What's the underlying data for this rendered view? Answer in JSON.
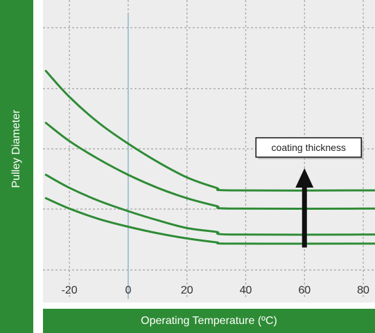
{
  "colors": {
    "accent": "#2e8b35",
    "curve": "#2e8b35",
    "panel": "#ededed",
    "grid": "#a3a3a3",
    "zero_line": "#8fb7cf",
    "arrow": "#111111"
  },
  "chart_data": {
    "type": "line",
    "title": "",
    "xlabel": "Operating Temperature (ºC)",
    "ylabel": "Pulley Diameter",
    "x_ticks": [
      "-20",
      "0",
      "20",
      "40",
      "60",
      "80"
    ],
    "xlim": [
      -29,
      84
    ],
    "ylim": [
      0,
      10
    ],
    "y_ticks_labeled": false,
    "grid": true,
    "zero_reference_line": 0,
    "series": [
      {
        "x": [
          -28,
          -20,
          -10,
          0,
          10,
          20,
          30,
          35,
          80,
          85
        ],
        "values": [
          7.8,
          6.8,
          5.8,
          5.0,
          4.3,
          3.7,
          3.3,
          3.2,
          3.2,
          3.2
        ]
      },
      {
        "x": [
          -28,
          -20,
          -10,
          0,
          10,
          20,
          30,
          35,
          80,
          85
        ],
        "values": [
          5.8,
          5.1,
          4.4,
          3.8,
          3.3,
          2.9,
          2.6,
          2.5,
          2.5,
          2.5
        ]
      },
      {
        "x": [
          -28,
          -20,
          -10,
          0,
          10,
          20,
          30,
          35,
          80,
          85
        ],
        "values": [
          3.8,
          3.3,
          2.8,
          2.4,
          2.05,
          1.75,
          1.6,
          1.5,
          1.5,
          1.5
        ]
      },
      {
        "x": [
          -28,
          -20,
          -10,
          0,
          10,
          20,
          30,
          35,
          80,
          85
        ],
        "values": [
          2.9,
          2.5,
          2.1,
          1.8,
          1.55,
          1.35,
          1.2,
          1.15,
          1.15,
          1.15
        ]
      }
    ],
    "annotation": {
      "text": "coating thickness",
      "arrow_x": 60,
      "arrow_from_y": 1.0,
      "arrow_to_y": 4.0,
      "direction": "up"
    }
  }
}
